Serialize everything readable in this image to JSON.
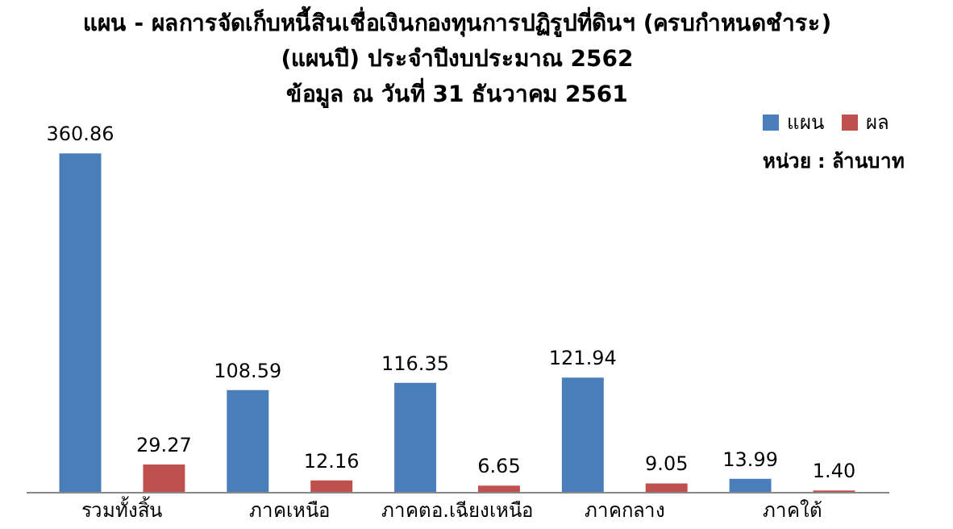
{
  "chart_data": {
    "type": "bar",
    "title": "แผน - ผลการจัดเก็บหนี้สินเชื่อเงินกองทุนการปฏิรูปที่ดินฯ (ครบกำหนดชำระ)\n(แผนปี)  ประจำปีงบประมาณ 2562\nข้อมูล ณ วันที่ 31 ธันวาคม 2561",
    "categories": [
      "รวมทั้งสิ้น",
      "ภาคเหนือ",
      "ภาคตอ.เฉียงเหนือ",
      "ภาคกลาง",
      "ภาคใต้"
    ],
    "series": [
      {
        "name": "แผน",
        "color": "#4a7ebb",
        "values": [
          360.86,
          108.59,
          116.35,
          121.94,
          13.99
        ],
        "value_labels": [
          "360.86",
          "108.59",
          "116.35",
          "121.94",
          "13.99"
        ]
      },
      {
        "name": "ผล",
        "color": "#c0504d",
        "values": [
          29.27,
          12.16,
          6.65,
          9.05,
          1.4
        ],
        "value_labels": [
          "29.27",
          "12.16",
          "6.65",
          "9.05",
          "1.40"
        ]
      }
    ],
    "annotations": [
      "หน่วย : ล้านบาท"
    ],
    "legend": "top right"
  }
}
